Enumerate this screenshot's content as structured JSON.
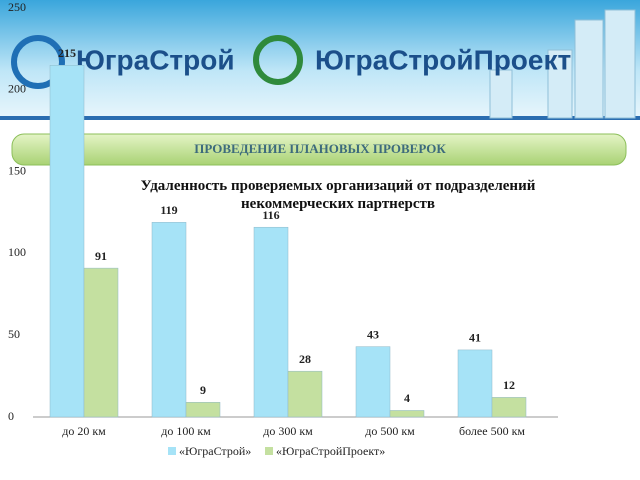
{
  "banner": {
    "logo_left": "ЮграСтрой",
    "logo_right": "ЮграСтройПроект",
    "heading": "ПРОВЕДЕНИЕ ПЛАНОВЫХ ПРОВЕРОК"
  },
  "chart_data": {
    "type": "bar",
    "title": "Удаленность проверяемых организаций от подразделений некоммерческих партнерств",
    "categories": [
      "до 20 км",
      "до 100 км",
      "до 300 км",
      "до 500 км",
      "более 500 км"
    ],
    "series": [
      {
        "name": "«ЮграСтрой»",
        "color": "#a6e3f7",
        "values": [
          215,
          119,
          116,
          43,
          41
        ]
      },
      {
        "name": "«ЮграСтройПроект»",
        "color": "#c4e0a0",
        "values": [
          91,
          9,
          28,
          4,
          12
        ]
      }
    ],
    "ylim": [
      0,
      250
    ],
    "yticks": [
      0,
      50,
      100,
      150,
      200,
      250
    ],
    "grid": false,
    "legend": "bottom"
  }
}
